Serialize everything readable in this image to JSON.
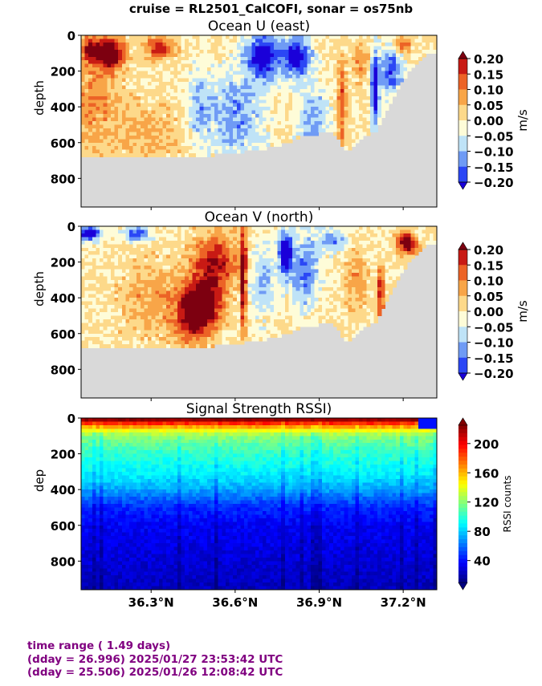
{
  "suptitle": "cruise = RL2501_CalCOFI,  sonar = os75nb",
  "footer": {
    "line1": "time range ( 1.49 days)",
    "line2": "(dday = 26.996) 2025/01/27 23:53:42 UTC",
    "line3": "(dday = 25.506) 2025/01/26 12:08:42 UTC"
  },
  "colors": {
    "footer_text": "#800080",
    "land_mask": "#d9d9d9",
    "velocity_levels": [
      "#1a00d9",
      "#2b47f5",
      "#6f9bf5",
      "#bfe3f7",
      "#fefcd8",
      "#fdd98a",
      "#f8a548",
      "#ec6326",
      "#c81a14",
      "#7d0010"
    ]
  },
  "chart_data": [
    {
      "type": "heatmap",
      "title": "Ocean U (east)",
      "ylabel": "depth",
      "ylim": [
        960,
        0
      ],
      "yticks": [
        "0",
        "200",
        "400",
        "600",
        "800"
      ],
      "xlim": [
        36.05,
        37.32
      ],
      "xticks": [
        "36.3°N",
        "36.6°N",
        "36.9°N",
        "37.2°N"
      ],
      "show_xtick_labels": false,
      "colorbar": {
        "label": "m/s",
        "ticks": [
          "0.20",
          "0.15",
          "0.10",
          "0.05",
          "0.00",
          "−0.05",
          "−0.10",
          "−0.15",
          "−0.20"
        ],
        "range": [
          -0.2,
          0.2
        ],
        "extend": "both"
      },
      "bottom_depth": [
        {
          "lat": 36.05,
          "depth": 670
        },
        {
          "lat": 36.2,
          "depth": 670
        },
        {
          "lat": 36.4,
          "depth": 685
        },
        {
          "lat": 36.6,
          "depth": 660
        },
        {
          "lat": 36.75,
          "depth": 620
        },
        {
          "lat": 36.85,
          "depth": 560
        },
        {
          "lat": 36.95,
          "depth": 540
        },
        {
          "lat": 37.0,
          "depth": 650
        },
        {
          "lat": 37.06,
          "depth": 560
        },
        {
          "lat": 37.1,
          "depth": 540
        },
        {
          "lat": 37.14,
          "depth": 430
        },
        {
          "lat": 37.18,
          "depth": 300
        },
        {
          "lat": 37.22,
          "depth": 200
        },
        {
          "lat": 37.28,
          "depth": 110
        },
        {
          "lat": 37.32,
          "depth": 90
        }
      ],
      "features": [
        {
          "lat": 36.15,
          "depth": 100,
          "value": 0.22,
          "wlat": 0.05,
          "wdep": 90
        },
        {
          "lat": 36.08,
          "depth": 80,
          "value": 0.16,
          "wlat": 0.03,
          "wdep": 70
        },
        {
          "lat": 36.33,
          "depth": 70,
          "value": 0.15,
          "wlat": 0.05,
          "wdep": 60
        },
        {
          "lat": 36.1,
          "depth": 380,
          "value": 0.07,
          "wlat": 0.1,
          "wdep": 260
        },
        {
          "lat": 36.3,
          "depth": 550,
          "value": 0.05,
          "wlat": 0.12,
          "wdep": 150
        },
        {
          "lat": 36.7,
          "depth": 120,
          "value": -0.2,
          "wlat": 0.06,
          "wdep": 130
        },
        {
          "lat": 36.82,
          "depth": 120,
          "value": -0.2,
          "wlat": 0.05,
          "wdep": 110
        },
        {
          "lat": 36.6,
          "depth": 450,
          "value": -0.1,
          "wlat": 0.1,
          "wdep": 250
        },
        {
          "lat": 36.47,
          "depth": 400,
          "value": -0.08,
          "wlat": 0.04,
          "wdep": 200
        },
        {
          "lat": 36.88,
          "depth": 480,
          "value": -0.1,
          "wlat": 0.05,
          "wdep": 200
        },
        {
          "lat": 36.98,
          "depth": 380,
          "value": 0.12,
          "wlat": 0.015,
          "wdep": 250
        },
        {
          "lat": 37.05,
          "depth": 150,
          "value": 0.08,
          "wlat": 0.03,
          "wdep": 100
        },
        {
          "lat": 37.1,
          "depth": 300,
          "value": -0.2,
          "wlat": 0.015,
          "wdep": 200
        },
        {
          "lat": 37.16,
          "depth": 200,
          "value": -0.15,
          "wlat": 0.04,
          "wdep": 120
        },
        {
          "lat": 37.2,
          "depth": 50,
          "value": 0.1,
          "wlat": 0.03,
          "wdep": 50
        }
      ]
    },
    {
      "type": "heatmap",
      "title": "Ocean V (north)",
      "ylabel": "depth",
      "ylim": [
        960,
        0
      ],
      "yticks": [
        "0",
        "200",
        "400",
        "600",
        "800"
      ],
      "xlim": [
        36.05,
        37.32
      ],
      "xticks": [
        "36.3°N",
        "36.6°N",
        "36.9°N",
        "37.2°N"
      ],
      "show_xtick_labels": false,
      "colorbar": {
        "label": "m/s",
        "ticks": [
          "0.20",
          "0.15",
          "0.10",
          "0.05",
          "0.00",
          "−0.05",
          "−0.10",
          "−0.15",
          "−0.20"
        ],
        "range": [
          -0.2,
          0.2
        ],
        "extend": "both"
      },
      "bottom_depth": [
        {
          "lat": 36.05,
          "depth": 670
        },
        {
          "lat": 36.2,
          "depth": 670
        },
        {
          "lat": 36.4,
          "depth": 685
        },
        {
          "lat": 36.6,
          "depth": 660
        },
        {
          "lat": 36.75,
          "depth": 620
        },
        {
          "lat": 36.85,
          "depth": 560
        },
        {
          "lat": 36.95,
          "depth": 540
        },
        {
          "lat": 37.0,
          "depth": 650
        },
        {
          "lat": 37.06,
          "depth": 560
        },
        {
          "lat": 37.1,
          "depth": 540
        },
        {
          "lat": 37.14,
          "depth": 430
        },
        {
          "lat": 37.18,
          "depth": 300
        },
        {
          "lat": 37.22,
          "depth": 200
        },
        {
          "lat": 37.28,
          "depth": 110
        },
        {
          "lat": 37.32,
          "depth": 90
        }
      ],
      "features": [
        {
          "lat": 36.08,
          "depth": 40,
          "value": -0.2,
          "wlat": 0.04,
          "wdep": 40
        },
        {
          "lat": 36.25,
          "depth": 40,
          "value": -0.15,
          "wlat": 0.05,
          "wdep": 40
        },
        {
          "lat": 36.48,
          "depth": 420,
          "value": 0.22,
          "wlat": 0.07,
          "wdep": 130
        },
        {
          "lat": 36.53,
          "depth": 200,
          "value": 0.15,
          "wlat": 0.08,
          "wdep": 150
        },
        {
          "lat": 36.45,
          "depth": 550,
          "value": 0.12,
          "wlat": 0.07,
          "wdep": 120
        },
        {
          "lat": 36.63,
          "depth": 280,
          "value": 0.22,
          "wlat": 0.01,
          "wdep": 330
        },
        {
          "lat": 36.3,
          "depth": 400,
          "value": 0.06,
          "wlat": 0.12,
          "wdep": 200
        },
        {
          "lat": 36.78,
          "depth": 150,
          "value": -0.22,
          "wlat": 0.025,
          "wdep": 120
        },
        {
          "lat": 36.85,
          "depth": 250,
          "value": -0.12,
          "wlat": 0.05,
          "wdep": 200
        },
        {
          "lat": 36.7,
          "depth": 300,
          "value": -0.08,
          "wlat": 0.05,
          "wdep": 200
        },
        {
          "lat": 36.95,
          "depth": 80,
          "value": -0.12,
          "wlat": 0.05,
          "wdep": 60
        },
        {
          "lat": 37.03,
          "depth": 300,
          "value": 0.06,
          "wlat": 0.04,
          "wdep": 200
        },
        {
          "lat": 37.12,
          "depth": 380,
          "value": 0.15,
          "wlat": 0.015,
          "wdep": 150
        },
        {
          "lat": 37.22,
          "depth": 90,
          "value": 0.22,
          "wlat": 0.04,
          "wdep": 60
        },
        {
          "lat": 37.25,
          "depth": 60,
          "value": -0.1,
          "wlat": 0.02,
          "wdep": 50
        }
      ]
    },
    {
      "type": "heatmap",
      "title": "Signal Strength RSSI)",
      "ylabel": "dep",
      "ylim": [
        960,
        0
      ],
      "yticks": [
        "0",
        "200",
        "400",
        "600",
        "800"
      ],
      "xlim": [
        36.05,
        37.32
      ],
      "xticks": [
        "36.3°N",
        "36.6°N",
        "36.9°N",
        "37.2°N"
      ],
      "xtick_values": [
        36.3,
        36.6,
        36.9,
        37.2
      ],
      "show_xtick_labels": true,
      "colorbar": {
        "label": "RSSI counts",
        "ticks": [
          "200",
          "160",
          "120",
          "80",
          "40"
        ],
        "tick_values": [
          200,
          160,
          120,
          80,
          40
        ],
        "range": [
          10,
          225
        ],
        "extend": "both"
      },
      "profile": [
        {
          "depth": 0,
          "value": 210
        },
        {
          "depth": 30,
          "value": 190
        },
        {
          "depth": 60,
          "value": 150
        },
        {
          "depth": 100,
          "value": 120
        },
        {
          "depth": 200,
          "value": 100
        },
        {
          "depth": 300,
          "value": 90
        },
        {
          "depth": 400,
          "value": 72
        },
        {
          "depth": 500,
          "value": 45
        },
        {
          "depth": 600,
          "value": 35
        },
        {
          "depth": 800,
          "value": 28
        },
        {
          "depth": 960,
          "value": 22
        }
      ]
    }
  ]
}
